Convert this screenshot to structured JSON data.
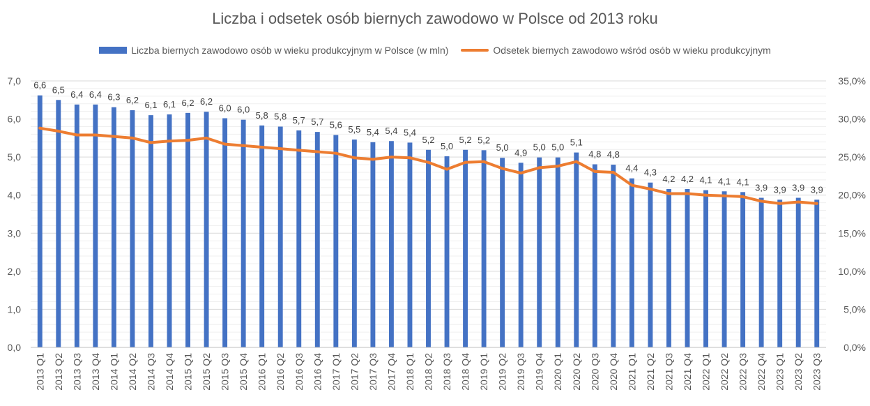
{
  "chart_data": {
    "type": "bar",
    "title": "Liczba i odsetek osób biernych zawodowo w Polsce od 2013 roku",
    "xlabel": "",
    "ylabel": "",
    "categories": [
      "2013 Q1",
      "2013 Q2",
      "2013 Q3",
      "2013 Q4",
      "2014 Q1",
      "2014 Q2",
      "2014 Q3",
      "2014 Q4",
      "2015 Q1",
      "2015 Q2",
      "2015 Q3",
      "2015 Q4",
      "2016 Q1",
      "2016 Q2",
      "2016 Q3",
      "2016 Q4",
      "2017 Q1",
      "2017 Q2",
      "2017 Q3",
      "2017 Q4",
      "2018 Q1",
      "2018 Q2",
      "2018 Q3",
      "2018 Q4",
      "2019 Q1",
      "2019 Q2",
      "2019 Q3",
      "2019 Q4",
      "2020 Q1",
      "2020 Q2",
      "2020 Q3",
      "2020 Q4",
      "2021 Q1",
      "2021 Q2",
      "2021 Q3",
      "2021 Q4",
      "2022 Q1",
      "2022 Q2",
      "2022 Q3",
      "2022 Q4",
      "2023 Q1",
      "2023 Q2",
      "2023 Q3"
    ],
    "series": [
      {
        "name": "Liczba biernych zawodowo osób w wieku produkcyjnym w Polsce (w mln)",
        "type": "bar",
        "axis": "left",
        "color": "#4472C4",
        "values": [
          6.62,
          6.5,
          6.38,
          6.38,
          6.31,
          6.23,
          6.1,
          6.12,
          6.16,
          6.19,
          6.02,
          5.98,
          5.83,
          5.8,
          5.7,
          5.66,
          5.58,
          5.46,
          5.39,
          5.42,
          5.38,
          5.19,
          5.02,
          5.19,
          5.18,
          4.98,
          4.85,
          4.99,
          4.99,
          5.12,
          4.81,
          4.8,
          4.44,
          4.33,
          4.16,
          4.16,
          4.13,
          4.1,
          4.08,
          3.93,
          3.88,
          3.93,
          3.88
        ],
        "labels": [
          "6,6",
          "6,5",
          "6,4",
          "6,4",
          "6,3",
          "6,2",
          "6,1",
          "6,1",
          "6,2",
          "6,2",
          "6,0",
          "6,0",
          "5,8",
          "5,8",
          "5,7",
          "5,7",
          "5,6",
          "5,5",
          "5,4",
          "5,4",
          "5,4",
          "5,2",
          "5,0",
          "5,2",
          "5,2",
          "5,0",
          "4,9",
          "5,0",
          "5,0",
          "5,1",
          "4,8",
          "4,8",
          "4,4",
          "4,3",
          "4,2",
          "4,2",
          "4,1",
          "4,1",
          "4,1",
          "3,9",
          "3,9",
          "3,9",
          "3,9"
        ]
      },
      {
        "name": "Odsetek biernych zawodowo wśród osób w wieku produkcyjnym",
        "type": "line",
        "axis": "right",
        "color": "#ED7D31",
        "values": [
          28.8,
          28.4,
          27.9,
          27.9,
          27.7,
          27.5,
          26.9,
          27.1,
          27.2,
          27.5,
          26.7,
          26.5,
          26.3,
          26.1,
          25.9,
          25.7,
          25.5,
          24.9,
          24.7,
          25.0,
          24.9,
          24.3,
          23.4,
          24.3,
          24.4,
          23.5,
          22.9,
          23.6,
          23.8,
          24.4,
          23.1,
          23.0,
          21.3,
          20.8,
          20.2,
          20.2,
          20.0,
          19.9,
          19.8,
          19.2,
          18.9,
          19.1,
          18.9
        ]
      }
    ],
    "y_left": {
      "ylim": [
        0,
        7
      ],
      "ticks": [
        "0,0",
        "1,0",
        "2,0",
        "3,0",
        "4,0",
        "5,0",
        "6,0",
        "7,0"
      ]
    },
    "y_right": {
      "ylim": [
        0,
        35
      ],
      "ticks": [
        "0,0%",
        "5,0%",
        "10,0%",
        "15,0%",
        "20,0%",
        "25,0%",
        "30,0%",
        "35,0%"
      ]
    },
    "grid": true,
    "legend_position": "top"
  }
}
